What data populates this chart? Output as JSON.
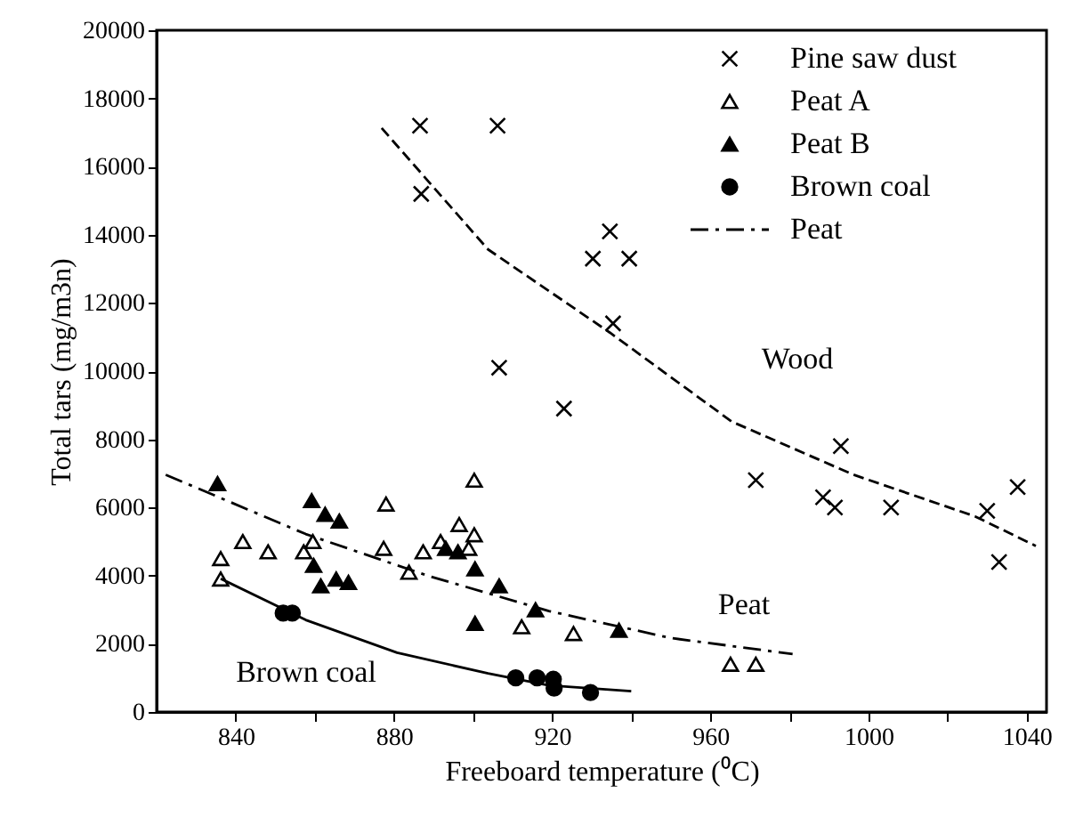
{
  "chart_data": {
    "type": "scatter",
    "xlabel": "Freeboard temperature (⁰C)",
    "ylabel": "Total tars (mg/m3n)",
    "xlim": [
      820,
      1045
    ],
    "xticks": [
      840,
      {
        "value": 860,
        "label": null
      },
      880,
      {
        "value": 900,
        "label": null
      },
      920,
      {
        "value": 940,
        "label": null
      },
      960,
      {
        "value": 980,
        "label": null
      },
      1000,
      {
        "value": 1020,
        "label": null
      },
      1040
    ],
    "ylim": [
      0,
      20000
    ],
    "yticks": [
      0,
      2000,
      4000,
      6000,
      8000,
      10000,
      12000,
      14000,
      16000,
      18000,
      20000
    ],
    "grid": false,
    "legend": "top right",
    "annotations": [
      "Wood",
      "Peat",
      "Brown coal"
    ],
    "series": [
      {
        "name": "Pine saw dust",
        "marker": "cross",
        "color": "#000000",
        "x": [
          886.6,
          906.2,
          886.9,
          934.6,
          930.3,
          939.5,
          935.4,
          906.6,
          923,
          971.5,
          993,
          988.5,
          991.5,
          1005.7,
          1030,
          1037.7,
          1033
        ],
        "values": [
          17200,
          17200,
          15200,
          14100,
          13300,
          13300,
          11400,
          10100,
          8900,
          6800,
          7800,
          6300,
          6000,
          6000,
          5900,
          6600,
          4400
        ]
      },
      {
        "name": "Peat A",
        "marker": "triangle",
        "color": "#ffffff",
        "x": [
          836.2,
          836.2,
          841.8,
          848.2,
          857.2,
          859.5,
          878,
          877.4,
          883.8,
          887.4,
          891.8,
          896.5,
          900.3,
          898.9,
          900.3,
          912.3,
          925.4,
          965.1,
          971.5
        ],
        "values": [
          4500,
          3900,
          5000,
          4700,
          4700,
          5000,
          6100,
          4800,
          4100,
          4700,
          5000,
          5500,
          5200,
          4800,
          6800,
          2500,
          2300,
          1400,
          1400
        ]
      },
      {
        "name": "Peat B",
        "marker": "triangle",
        "color": "#000000",
        "x": [
          835.4,
          859.2,
          862.6,
          866.2,
          859.7,
          861.5,
          865.4,
          868.5,
          893.1,
          896.2,
          900.5,
          900.5,
          906.6,
          915.8,
          936.9
        ],
        "values": [
          6700,
          6200,
          5800,
          5600,
          4300,
          3700,
          3900,
          3800,
          4800,
          4700,
          4200,
          2600,
          3700,
          3000,
          2400
        ]
      },
      {
        "name": "Brown coal",
        "marker": "circle",
        "color": "#000000",
        "x": [
          852,
          854.3,
          910.8,
          916.2,
          920.3,
          920.5,
          929.7
        ],
        "values": [
          2900,
          2900,
          1000,
          1000,
          960,
          700,
          570
        ]
      },
      {
        "name": "Peat",
        "type": "line",
        "line_style": "dashdot",
        "color": "#000000",
        "x": [
          822.3,
          857.7,
          888.5,
          919.2,
          950,
          980.8
        ],
        "values": [
          6960,
          5220,
          4000,
          2960,
          2170,
          1700
        ]
      },
      {
        "type": "line",
        "line_style": "dashed",
        "color": "#000000",
        "x": [
          876.9,
          903.8,
          934.6,
          965.4,
          996.2,
          1026.9,
          1042.3
        ],
        "values": [
          17130,
          13570,
          11130,
          8520,
          6960,
          5740,
          4870
        ]
      },
      {
        "type": "line",
        "line_style": "solid",
        "color": "#000000",
        "x": [
          836.2,
          857.7,
          880.8,
          903.8,
          919.2,
          940
        ],
        "values": [
          3910,
          2700,
          1740,
          1130,
          780,
          610
        ]
      }
    ]
  }
}
